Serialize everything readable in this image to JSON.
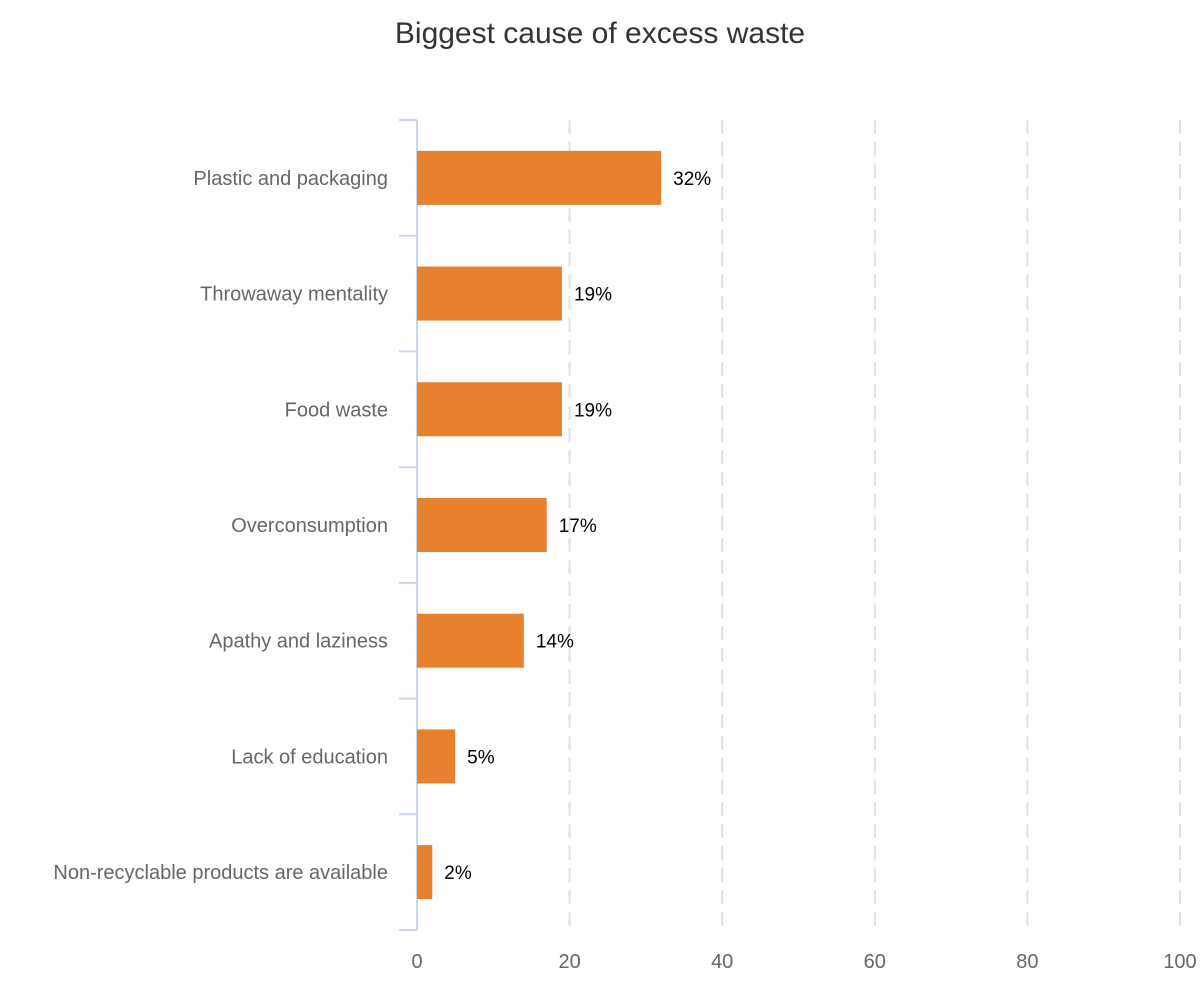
{
  "chart_data": {
    "type": "bar",
    "orientation": "horizontal",
    "title": "Biggest cause of excess waste",
    "xlabel": "",
    "ylabel": "",
    "categories": [
      "Plastic and packaging",
      "Throwaway mentality",
      "Food waste",
      "Overconsumption",
      "Apathy and laziness",
      "Lack of education",
      "Non-recyclable products are available"
    ],
    "values": [
      32,
      19,
      19,
      17,
      14,
      5,
      2
    ],
    "data_labels": [
      "32%",
      "19%",
      "19%",
      "17%",
      "14%",
      "5%",
      "2%"
    ],
    "xlim": [
      0,
      100
    ],
    "xticks": [
      0,
      20,
      40,
      60,
      80,
      100
    ],
    "grid": "vertical dashed",
    "legend": "none",
    "bar_color": "#E8812D",
    "grid_color": "#e0e0e0",
    "axis_color": "#ccd6eb"
  }
}
